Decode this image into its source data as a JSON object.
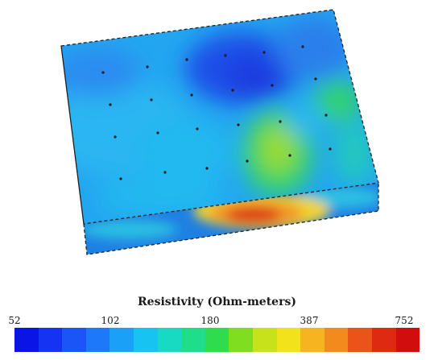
{
  "legend": {
    "title": "Resistivity (Ohm-meters)",
    "ticks": [
      "52",
      "102",
      "180",
      "387",
      "752"
    ],
    "colors": [
      "#0b14e6",
      "#1533f2",
      "#1c55f7",
      "#1d78fa",
      "#1aa0f7",
      "#17c3f0",
      "#18d9c2",
      "#1ede8a",
      "#2edc4e",
      "#7fde20",
      "#c7e21a",
      "#f2e21c",
      "#f6b520",
      "#f28a1e",
      "#ea5418",
      "#df2a12",
      "#d20d0d"
    ]
  },
  "block": {
    "top_colors": {
      "deep_blue": "#1c4fe8",
      "blue": "#2a7fec",
      "cyan": "#22b8f0",
      "green": "#32d36a",
      "yellow_green": "#9bdc2a"
    },
    "side_colors": {
      "blue": "#1f80e3",
      "cyan": "#29bfe3",
      "yellow": "#f1d232",
      "orange": "#f0962a",
      "red": "#dc3e18"
    }
  }
}
